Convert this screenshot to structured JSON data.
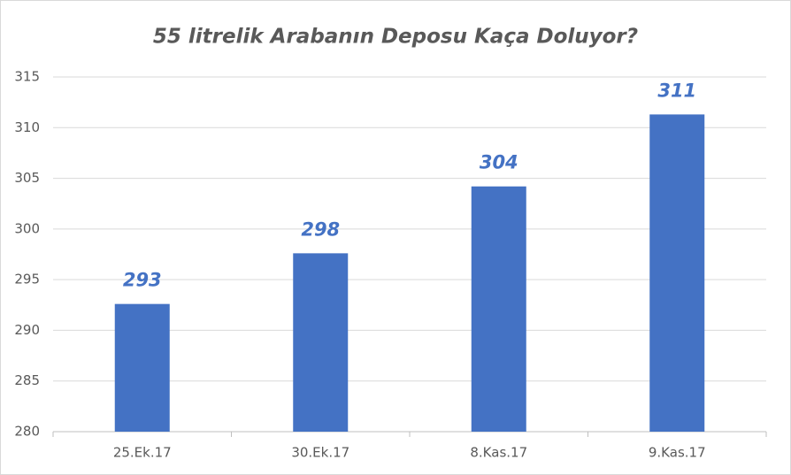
{
  "chart_data": {
    "type": "bar",
    "title": "55 litrelik Arabanın Deposu Kaça Doluyor?",
    "categories": [
      "25.Ek.17",
      "30.Ek.17",
      "8.Kas.17",
      "9.Kas.17"
    ],
    "values": [
      292.6,
      297.6,
      304.2,
      311.3
    ],
    "value_labels": [
      "293",
      "298",
      "304",
      "311"
    ],
    "color": "#4472c4",
    "ylim": [
      280,
      315
    ],
    "yticks": [
      280,
      285,
      290,
      295,
      300,
      305,
      310,
      315
    ],
    "grid": true
  }
}
